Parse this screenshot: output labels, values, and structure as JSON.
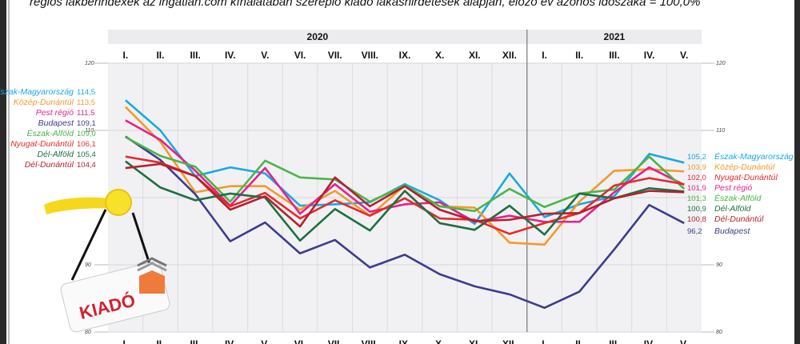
{
  "subtitle": "régiós lakbérindexek az ingatlan.com kínálatában szereplő kiadó lakáshirdetések alapján, előző év azonos időszaka = 100,0%",
  "sign": {
    "text": "KIADÓ",
    "text_color": "#d4202f",
    "house_color": "#ef7b3b"
  },
  "chart_data": {
    "type": "line",
    "title": "",
    "xlabel": "",
    "ylabel": "",
    "ylim": [
      80,
      120
    ],
    "yticks": [
      "80",
      "90",
      "110",
      "120"
    ],
    "grid": true,
    "years": [
      {
        "label": "2020",
        "months": 12
      },
      {
        "label": "2021",
        "months": 5
      }
    ],
    "categories": [
      "I.",
      "II.",
      "III.",
      "IV.",
      "V.",
      "VI.",
      "VII.",
      "VIII.",
      "IX.",
      "X.",
      "XI.",
      "XII.",
      "I.",
      "II.",
      "III.",
      "IV.",
      "V."
    ],
    "series": [
      {
        "name": "Észak-Magyarország",
        "color": "#1ba9e0",
        "start_label": "114,5",
        "end_label": "105,2",
        "values": [
          114.5,
          110.0,
          103.2,
          104.5,
          103.6,
          98.8,
          99.0,
          99.3,
          102.0,
          99.6,
          96.1,
          103.6,
          97.1,
          99.0,
          100.2,
          106.5,
          105.2
        ]
      },
      {
        "name": "Közép-Dunántúl",
        "color": "#f39a2b",
        "start_label": "113,5",
        "end_label": "103,9",
        "values": [
          113.5,
          108.3,
          100.8,
          101.7,
          101.7,
          98.2,
          101.0,
          97.3,
          101.8,
          98.7,
          98.5,
          93.3,
          93.0,
          99.4,
          104.0,
          104.2,
          103.9
        ]
      },
      {
        "name": "Pest régió",
        "color": "#e2238c",
        "start_label": "111,5",
        "end_label": "101,9",
        "values": [
          111.5,
          108.6,
          104.0,
          98.8,
          104.4,
          97.6,
          102.0,
          97.9,
          99.0,
          99.3,
          96.4,
          97.3,
          96.4,
          96.4,
          100.8,
          104.5,
          101.9
        ]
      },
      {
        "name": "Budapest",
        "color": "#3b3d8f",
        "start_label": "109,1",
        "end_label": "96,2",
        "values": [
          109.1,
          105.6,
          100.5,
          93.5,
          96.3,
          91.7,
          93.7,
          89.6,
          91.5,
          88.6,
          86.8,
          85.6,
          83.6,
          86.0,
          92.3,
          98.9,
          96.2
        ]
      },
      {
        "name": "Észak-Alföld",
        "color": "#4cb54a",
        "start_label": "109,0",
        "end_label": "101,3",
        "values": [
          109.0,
          106.2,
          104.6,
          99.4,
          105.5,
          103.0,
          102.7,
          99.4,
          101.8,
          98.7,
          98.0,
          101.3,
          98.6,
          100.6,
          101.2,
          106.1,
          101.3
        ]
      },
      {
        "name": "Nyugat-Dunántúl",
        "color": "#e52b2b",
        "start_label": "106,1",
        "end_label": "102,0",
        "values": [
          106.1,
          105.2,
          103.2,
          98.7,
          100.7,
          96.9,
          99.6,
          97.3,
          99.9,
          96.9,
          96.7,
          94.6,
          96.2,
          97.7,
          101.8,
          102.9,
          102.0
        ]
      },
      {
        "name": "Dél-Alföld",
        "color": "#1e7040",
        "start_label": "105,4",
        "end_label": "100,9",
        "values": [
          105.4,
          101.5,
          99.6,
          100.6,
          100.0,
          93.6,
          98.3,
          95.1,
          101.0,
          96.2,
          95.2,
          98.8,
          94.5,
          100.6,
          99.9,
          101.4,
          100.9
        ]
      },
      {
        "name": "Dél-Dunántúl",
        "color": "#b5212e",
        "start_label": "104,4",
        "end_label": "100,8",
        "values": [
          104.4,
          105.0,
          103.2,
          98.2,
          100.2,
          95.7,
          103.0,
          98.7,
          101.7,
          98.2,
          96.5,
          96.7,
          97.6,
          97.7,
          99.9,
          101.0,
          100.8
        ]
      }
    ]
  }
}
